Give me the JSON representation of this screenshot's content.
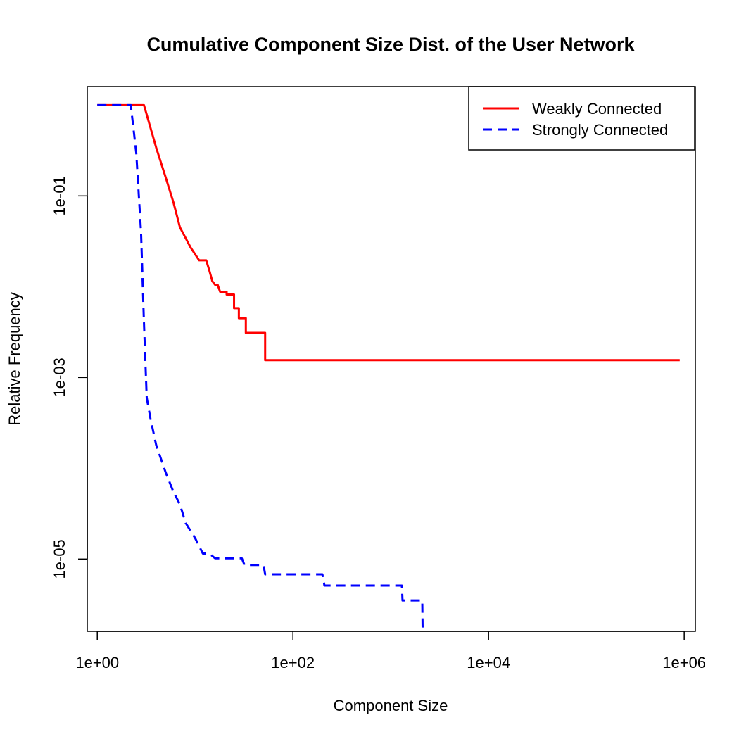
{
  "chart_data": {
    "type": "line",
    "title": "Cumulative Component Size Dist. of the User Network",
    "xlabel": "Component Size",
    "ylabel": "Relative Frequency",
    "x_scale": "log",
    "y_scale": "log",
    "xlim": [
      0.79,
      1300000
    ],
    "ylim": [
      1.6e-06,
      1.6
    ],
    "x_ticks": [
      {
        "value": 1,
        "label": "1e+00"
      },
      {
        "value": 100,
        "label": "1e+02"
      },
      {
        "value": 10000,
        "label": "1e+04"
      },
      {
        "value": 1000000,
        "label": "1e+06"
      }
    ],
    "y_ticks": [
      {
        "value": 0.1,
        "label": "1e-01"
      },
      {
        "value": 0.001,
        "label": "1e-03"
      },
      {
        "value": 1e-05,
        "label": "1e-05"
      }
    ],
    "grid": false,
    "legend_position": "top-right",
    "series": [
      {
        "name": "Weakly Connected",
        "color": "#ff0000",
        "dash": "solid",
        "points": [
          [
            1,
            1.0
          ],
          [
            3,
            1.0
          ],
          [
            4,
            0.34
          ],
          [
            5,
            0.16
          ],
          [
            6,
            0.085
          ],
          [
            7,
            0.045
          ],
          [
            9,
            0.027
          ],
          [
            11,
            0.0195
          ],
          [
            13,
            0.0195
          ],
          [
            14,
            0.015
          ],
          [
            15,
            0.0115
          ],
          [
            16,
            0.0105
          ],
          [
            17,
            0.0105
          ],
          [
            18,
            0.0088
          ],
          [
            21,
            0.0088
          ],
          [
            21,
            0.0082
          ],
          [
            25,
            0.0082
          ],
          [
            25,
            0.0058
          ],
          [
            28,
            0.0058
          ],
          [
            28,
            0.0045
          ],
          [
            33,
            0.0045
          ],
          [
            33,
            0.0031
          ],
          [
            52,
            0.0031
          ],
          [
            52,
            0.00155
          ],
          [
            900000,
            0.00155
          ]
        ]
      },
      {
        "name": "Strongly Connected",
        "color": "#0000ff",
        "dash": "dashed",
        "points": [
          [
            1,
            1.0
          ],
          [
            2.2,
            1.0
          ],
          [
            2.5,
            0.3
          ],
          [
            2.8,
            0.04
          ],
          [
            3.0,
            0.004
          ],
          [
            3.2,
            0.0006
          ],
          [
            3.5,
            0.00035
          ],
          [
            4,
            0.00018
          ],
          [
            5,
            9e-05
          ],
          [
            6,
            5.5e-05
          ],
          [
            7,
            4e-05
          ],
          [
            8,
            2.5e-05
          ],
          [
            10,
            1.7e-05
          ],
          [
            12,
            1.15e-05
          ],
          [
            14,
            1.15e-05
          ],
          [
            16,
            1.02e-05
          ],
          [
            30,
            1.02e-05
          ],
          [
            32,
            8.6e-06
          ],
          [
            50,
            8.6e-06
          ],
          [
            52,
            6.8e-06
          ],
          [
            200,
            6.8e-06
          ],
          [
            210,
            5.1e-06
          ],
          [
            1300,
            5.1e-06
          ],
          [
            1320,
            3.5e-06
          ],
          [
            2100,
            3.5e-06
          ],
          [
            2120,
            1.6e-06
          ]
        ]
      }
    ]
  }
}
